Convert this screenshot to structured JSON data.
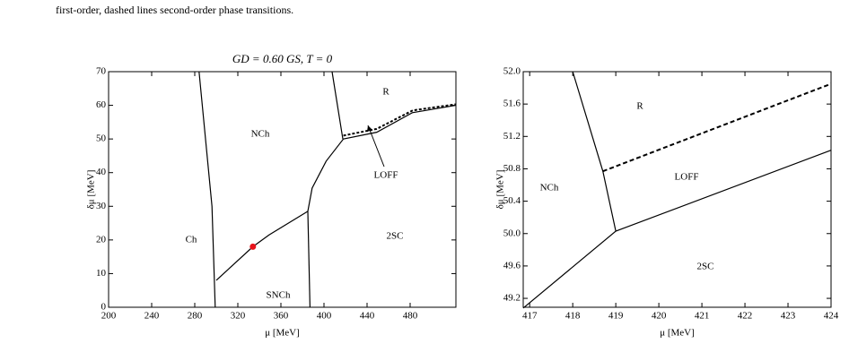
{
  "caption": "first-order, dashed lines second-order phase transitions.",
  "chart_data": [
    {
      "type": "line",
      "title": "GD = 0.60 GS,   T = 0",
      "xlabel": "μ [MeV]",
      "ylabel": "δμ [MeV]",
      "xlim": [
        200,
        522.5
      ],
      "ylim": [
        0,
        70
      ],
      "xticks": [
        200,
        240,
        280,
        320,
        360,
        400,
        440,
        480
      ],
      "yticks": [
        0,
        10,
        20,
        30,
        40,
        50,
        60,
        70
      ],
      "annotations": [
        "NCh",
        "Ch",
        "SNCh",
        "2SC",
        "R",
        "LOFF"
      ],
      "series": [
        {
          "color": "#000000",
          "dashed": false,
          "x": [
            284,
            296,
            299
          ],
          "values": [
            70,
            30,
            0
          ]
        },
        {
          "color": "#000000",
          "dashed": false,
          "x": [
            300,
            334,
            349,
            385
          ],
          "values": [
            8,
            18,
            21.5,
            28.5
          ]
        },
        {
          "color": "#000000",
          "dashed": false,
          "x": [
            385,
            387
          ],
          "values": [
            28.5,
            0
          ]
        },
        {
          "color": "#000000",
          "dashed": false,
          "x": [
            385,
            389,
            402,
            418,
            449,
            482,
            522.5
          ],
          "values": [
            28.5,
            35.4,
            43.4,
            50,
            52,
            57.8,
            60
          ]
        },
        {
          "color": "#000000",
          "dashed": false,
          "x": [
            407.5,
            417.5
          ],
          "values": [
            70,
            50
          ]
        },
        {
          "color": "#000000",
          "dashed": true,
          "x": [
            418,
            449,
            482.5,
            522.5
          ],
          "values": [
            51,
            53,
            58.5,
            60.3
          ]
        },
        {
          "color": "#e8141c",
          "mode": "marker",
          "x": [
            334
          ],
          "values": [
            18
          ]
        }
      ]
    },
    {
      "type": "line",
      "xlabel": "μ [MeV]",
      "ylabel": "δμ [MeV]",
      "xlim": [
        416.85,
        424
      ],
      "ylim": [
        49.09,
        52
      ],
      "xticks": [
        417,
        418,
        419,
        420,
        421,
        422,
        423,
        424
      ],
      "yticks": [
        49.2,
        49.6,
        {
          "value": 50,
          "label": "50.0"
        },
        50.4,
        50.8,
        51.2,
        51.6,
        {
          "value": 52,
          "label": "52.0"
        }
      ],
      "annotations": [
        "R",
        "NCh",
        "LOFF",
        "2SC"
      ],
      "series": [
        {
          "color": "#000000",
          "dashed": false,
          "x": [
            418,
            418.7,
            419
          ],
          "values": [
            52,
            50.77,
            50.03
          ]
        },
        {
          "color": "#000000",
          "dashed": false,
          "x": [
            416.85,
            419,
            424
          ],
          "values": [
            49.08,
            50.03,
            51.03
          ]
        },
        {
          "color": "#000000",
          "dashed": true,
          "x": [
            418.7,
            424
          ],
          "values": [
            50.77,
            51.85
          ]
        }
      ]
    }
  ]
}
